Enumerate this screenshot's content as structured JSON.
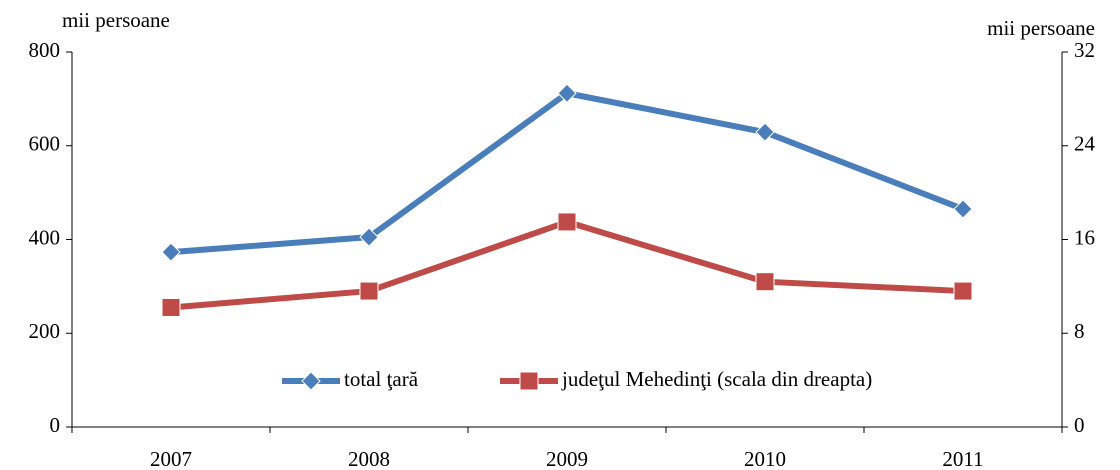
{
  "chart_data": {
    "type": "line",
    "ylabel": "mii persoane",
    "y2label": "mii persoane",
    "categories": [
      "2007",
      "2008",
      "2009",
      "2010",
      "2011"
    ],
    "series": [
      {
        "name": "total ţară",
        "color": "#4a7ebb",
        "marker": "diamond",
        "values": [
          373,
          405,
          712,
          629,
          465
        ]
      },
      {
        "name": "judeţul Mehedinţi (scala din dreapta)",
        "color": "#be4b48",
        "marker": "square",
        "axis": "y2",
        "values": [
          10.2,
          11.6,
          17.5,
          12.4,
          11.6
        ]
      }
    ],
    "ylim": [
      0,
      800
    ],
    "yticks": [
      0,
      200,
      400,
      600,
      800
    ],
    "y2lim": [
      0,
      32
    ],
    "y2ticks": [
      0,
      8,
      16,
      24,
      32
    ],
    "grid": false,
    "legend": "bottom"
  }
}
